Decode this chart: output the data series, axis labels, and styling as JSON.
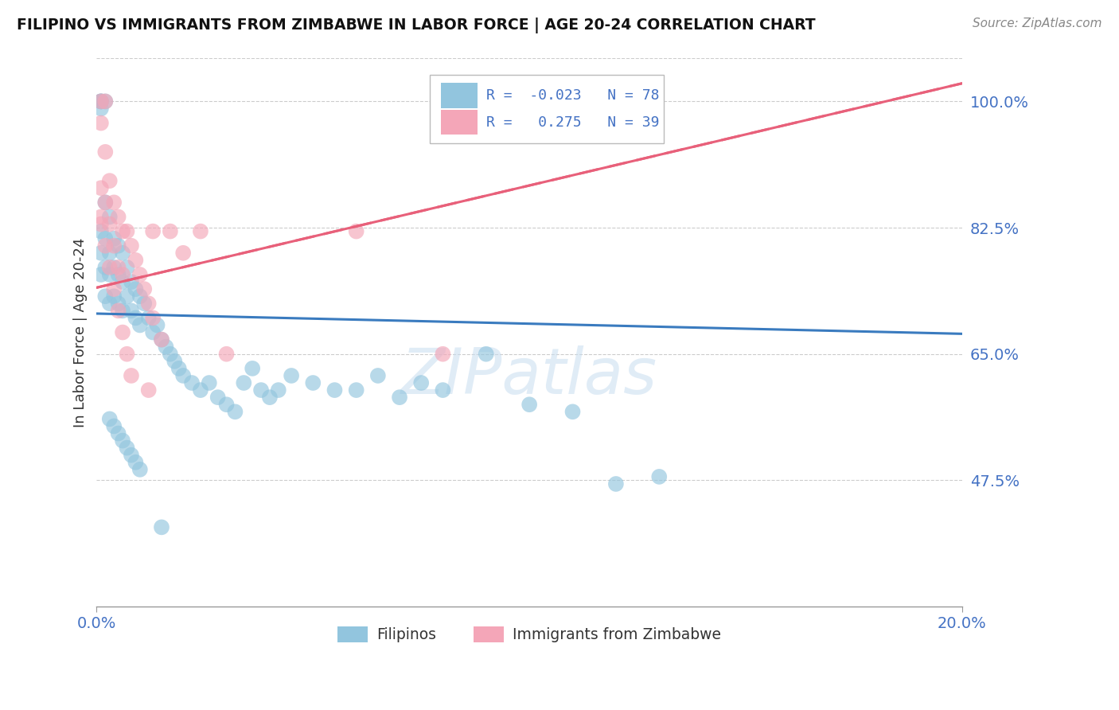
{
  "title": "FILIPINO VS IMMIGRANTS FROM ZIMBABWE IN LABOR FORCE | AGE 20-24 CORRELATION CHART",
  "source": "Source: ZipAtlas.com",
  "xlabel_filipinos": "Filipinos",
  "xlabel_zimbabwe": "Immigrants from Zimbabwe",
  "ylabel": "In Labor Force | Age 20-24",
  "xlim": [
    0.0,
    0.2
  ],
  "ylim": [
    0.3,
    1.06
  ],
  "yticks": [
    0.475,
    0.65,
    0.825,
    1.0
  ],
  "ytick_labels": [
    "47.5%",
    "65.0%",
    "82.5%",
    "100.0%"
  ],
  "blue_R": -0.023,
  "blue_N": 78,
  "pink_R": 0.275,
  "pink_N": 39,
  "blue_color": "#92c5de",
  "pink_color": "#f4a6b8",
  "blue_line_color": "#3a7bbf",
  "pink_line_color": "#e8607a",
  "watermark": "ZIPatlas",
  "background_color": "#ffffff",
  "grid_color": "#cccccc",
  "blue_line_y0": 0.706,
  "blue_line_y1": 0.678,
  "pink_line_y0": 0.742,
  "pink_line_y1": 1.025,
  "blue_scatter_x": [
    0.001,
    0.001,
    0.001,
    0.001,
    0.001,
    0.001,
    0.001,
    0.002,
    0.002,
    0.002,
    0.002,
    0.002,
    0.003,
    0.003,
    0.003,
    0.003,
    0.004,
    0.004,
    0.004,
    0.005,
    0.005,
    0.005,
    0.006,
    0.006,
    0.006,
    0.007,
    0.007,
    0.008,
    0.008,
    0.009,
    0.009,
    0.01,
    0.01,
    0.011,
    0.012,
    0.013,
    0.014,
    0.015,
    0.016,
    0.017,
    0.018,
    0.019,
    0.02,
    0.022,
    0.024,
    0.026,
    0.028,
    0.03,
    0.032,
    0.034,
    0.036,
    0.038,
    0.04,
    0.042,
    0.045,
    0.05,
    0.055,
    0.06,
    0.065,
    0.07,
    0.075,
    0.08,
    0.09,
    0.1,
    0.11,
    0.12,
    0.13,
    0.003,
    0.004,
    0.005,
    0.006,
    0.007,
    0.008,
    0.009,
    0.01,
    0.015
  ],
  "blue_scatter_y": [
    1.0,
    1.0,
    1.0,
    0.99,
    0.82,
    0.79,
    0.76,
    1.0,
    0.86,
    0.81,
    0.77,
    0.73,
    0.84,
    0.79,
    0.76,
    0.72,
    0.81,
    0.77,
    0.73,
    0.8,
    0.76,
    0.72,
    0.79,
    0.75,
    0.71,
    0.77,
    0.73,
    0.75,
    0.71,
    0.74,
    0.7,
    0.73,
    0.69,
    0.72,
    0.7,
    0.68,
    0.69,
    0.67,
    0.66,
    0.65,
    0.64,
    0.63,
    0.62,
    0.61,
    0.6,
    0.61,
    0.59,
    0.58,
    0.57,
    0.61,
    0.63,
    0.6,
    0.59,
    0.6,
    0.62,
    0.61,
    0.6,
    0.6,
    0.62,
    0.59,
    0.61,
    0.6,
    0.65,
    0.58,
    0.57,
    0.47,
    0.48,
    0.56,
    0.55,
    0.54,
    0.53,
    0.52,
    0.51,
    0.5,
    0.49,
    0.41
  ],
  "pink_scatter_x": [
    0.001,
    0.001,
    0.001,
    0.001,
    0.002,
    0.002,
    0.002,
    0.003,
    0.003,
    0.004,
    0.004,
    0.005,
    0.005,
    0.006,
    0.006,
    0.007,
    0.008,
    0.009,
    0.01,
    0.011,
    0.012,
    0.013,
    0.015,
    0.017,
    0.02,
    0.024,
    0.03,
    0.06,
    0.08,
    0.001,
    0.002,
    0.003,
    0.004,
    0.005,
    0.006,
    0.007,
    0.008,
    0.012,
    0.013
  ],
  "pink_scatter_y": [
    1.0,
    0.97,
    0.88,
    0.83,
    1.0,
    0.93,
    0.86,
    0.89,
    0.83,
    0.86,
    0.8,
    0.84,
    0.77,
    0.82,
    0.76,
    0.82,
    0.8,
    0.78,
    0.76,
    0.74,
    0.72,
    0.7,
    0.67,
    0.82,
    0.79,
    0.82,
    0.65,
    0.82,
    0.65,
    0.84,
    0.8,
    0.77,
    0.74,
    0.71,
    0.68,
    0.65,
    0.62,
    0.6,
    0.82
  ]
}
